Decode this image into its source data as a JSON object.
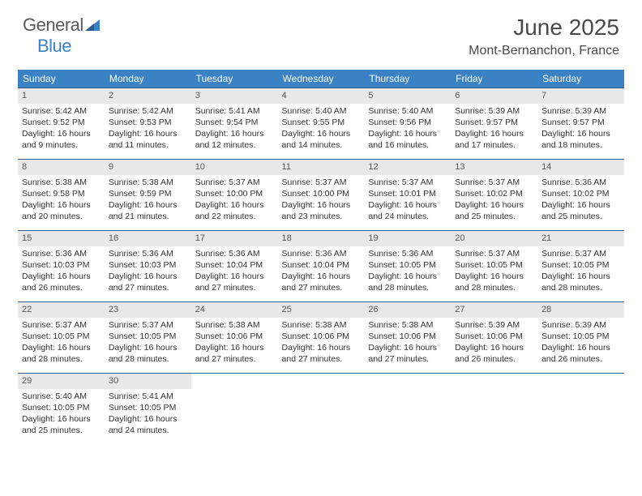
{
  "logo": {
    "part1": "General",
    "part2": "Blue"
  },
  "title": "June 2025",
  "location": "Mont-Bernanchon, France",
  "colors": {
    "header_bg": "#3b82c4",
    "header_text": "#ffffff",
    "row_border": "#2f5f8f",
    "daynum_bg": "#e8e8e8",
    "text": "#333333",
    "logo_gray": "#5a5a5a",
    "logo_blue": "#3b82c4"
  },
  "day_headers": [
    "Sunday",
    "Monday",
    "Tuesday",
    "Wednesday",
    "Thursday",
    "Friday",
    "Saturday"
  ],
  "weeks": [
    [
      {
        "n": "1",
        "sr": "Sunrise: 5:42 AM",
        "ss": "Sunset: 9:52 PM",
        "dl1": "Daylight: 16 hours",
        "dl2": "and 9 minutes."
      },
      {
        "n": "2",
        "sr": "Sunrise: 5:42 AM",
        "ss": "Sunset: 9:53 PM",
        "dl1": "Daylight: 16 hours",
        "dl2": "and 11 minutes."
      },
      {
        "n": "3",
        "sr": "Sunrise: 5:41 AM",
        "ss": "Sunset: 9:54 PM",
        "dl1": "Daylight: 16 hours",
        "dl2": "and 12 minutes."
      },
      {
        "n": "4",
        "sr": "Sunrise: 5:40 AM",
        "ss": "Sunset: 9:55 PM",
        "dl1": "Daylight: 16 hours",
        "dl2": "and 14 minutes."
      },
      {
        "n": "5",
        "sr": "Sunrise: 5:40 AM",
        "ss": "Sunset: 9:56 PM",
        "dl1": "Daylight: 16 hours",
        "dl2": "and 16 minutes."
      },
      {
        "n": "6",
        "sr": "Sunrise: 5:39 AM",
        "ss": "Sunset: 9:57 PM",
        "dl1": "Daylight: 16 hours",
        "dl2": "and 17 minutes."
      },
      {
        "n": "7",
        "sr": "Sunrise: 5:39 AM",
        "ss": "Sunset: 9:57 PM",
        "dl1": "Daylight: 16 hours",
        "dl2": "and 18 minutes."
      }
    ],
    [
      {
        "n": "8",
        "sr": "Sunrise: 5:38 AM",
        "ss": "Sunset: 9:58 PM",
        "dl1": "Daylight: 16 hours",
        "dl2": "and 20 minutes."
      },
      {
        "n": "9",
        "sr": "Sunrise: 5:38 AM",
        "ss": "Sunset: 9:59 PM",
        "dl1": "Daylight: 16 hours",
        "dl2": "and 21 minutes."
      },
      {
        "n": "10",
        "sr": "Sunrise: 5:37 AM",
        "ss": "Sunset: 10:00 PM",
        "dl1": "Daylight: 16 hours",
        "dl2": "and 22 minutes."
      },
      {
        "n": "11",
        "sr": "Sunrise: 5:37 AM",
        "ss": "Sunset: 10:00 PM",
        "dl1": "Daylight: 16 hours",
        "dl2": "and 23 minutes."
      },
      {
        "n": "12",
        "sr": "Sunrise: 5:37 AM",
        "ss": "Sunset: 10:01 PM",
        "dl1": "Daylight: 16 hours",
        "dl2": "and 24 minutes."
      },
      {
        "n": "13",
        "sr": "Sunrise: 5:37 AM",
        "ss": "Sunset: 10:02 PM",
        "dl1": "Daylight: 16 hours",
        "dl2": "and 25 minutes."
      },
      {
        "n": "14",
        "sr": "Sunrise: 5:36 AM",
        "ss": "Sunset: 10:02 PM",
        "dl1": "Daylight: 16 hours",
        "dl2": "and 25 minutes."
      }
    ],
    [
      {
        "n": "15",
        "sr": "Sunrise: 5:36 AM",
        "ss": "Sunset: 10:03 PM",
        "dl1": "Daylight: 16 hours",
        "dl2": "and 26 minutes."
      },
      {
        "n": "16",
        "sr": "Sunrise: 5:36 AM",
        "ss": "Sunset: 10:03 PM",
        "dl1": "Daylight: 16 hours",
        "dl2": "and 27 minutes."
      },
      {
        "n": "17",
        "sr": "Sunrise: 5:36 AM",
        "ss": "Sunset: 10:04 PM",
        "dl1": "Daylight: 16 hours",
        "dl2": "and 27 minutes."
      },
      {
        "n": "18",
        "sr": "Sunrise: 5:36 AM",
        "ss": "Sunset: 10:04 PM",
        "dl1": "Daylight: 16 hours",
        "dl2": "and 27 minutes."
      },
      {
        "n": "19",
        "sr": "Sunrise: 5:36 AM",
        "ss": "Sunset: 10:05 PM",
        "dl1": "Daylight: 16 hours",
        "dl2": "and 28 minutes."
      },
      {
        "n": "20",
        "sr": "Sunrise: 5:37 AM",
        "ss": "Sunset: 10:05 PM",
        "dl1": "Daylight: 16 hours",
        "dl2": "and 28 minutes."
      },
      {
        "n": "21",
        "sr": "Sunrise: 5:37 AM",
        "ss": "Sunset: 10:05 PM",
        "dl1": "Daylight: 16 hours",
        "dl2": "and 28 minutes."
      }
    ],
    [
      {
        "n": "22",
        "sr": "Sunrise: 5:37 AM",
        "ss": "Sunset: 10:05 PM",
        "dl1": "Daylight: 16 hours",
        "dl2": "and 28 minutes."
      },
      {
        "n": "23",
        "sr": "Sunrise: 5:37 AM",
        "ss": "Sunset: 10:05 PM",
        "dl1": "Daylight: 16 hours",
        "dl2": "and 28 minutes."
      },
      {
        "n": "24",
        "sr": "Sunrise: 5:38 AM",
        "ss": "Sunset: 10:06 PM",
        "dl1": "Daylight: 16 hours",
        "dl2": "and 27 minutes."
      },
      {
        "n": "25",
        "sr": "Sunrise: 5:38 AM",
        "ss": "Sunset: 10:06 PM",
        "dl1": "Daylight: 16 hours",
        "dl2": "and 27 minutes."
      },
      {
        "n": "26",
        "sr": "Sunrise: 5:38 AM",
        "ss": "Sunset: 10:06 PM",
        "dl1": "Daylight: 16 hours",
        "dl2": "and 27 minutes."
      },
      {
        "n": "27",
        "sr": "Sunrise: 5:39 AM",
        "ss": "Sunset: 10:06 PM",
        "dl1": "Daylight: 16 hours",
        "dl2": "and 26 minutes."
      },
      {
        "n": "28",
        "sr": "Sunrise: 5:39 AM",
        "ss": "Sunset: 10:05 PM",
        "dl1": "Daylight: 16 hours",
        "dl2": "and 26 minutes."
      }
    ],
    [
      {
        "n": "29",
        "sr": "Sunrise: 5:40 AM",
        "ss": "Sunset: 10:05 PM",
        "dl1": "Daylight: 16 hours",
        "dl2": "and 25 minutes."
      },
      {
        "n": "30",
        "sr": "Sunrise: 5:41 AM",
        "ss": "Sunset: 10:05 PM",
        "dl1": "Daylight: 16 hours",
        "dl2": "and 24 minutes."
      },
      null,
      null,
      null,
      null,
      null
    ]
  ]
}
